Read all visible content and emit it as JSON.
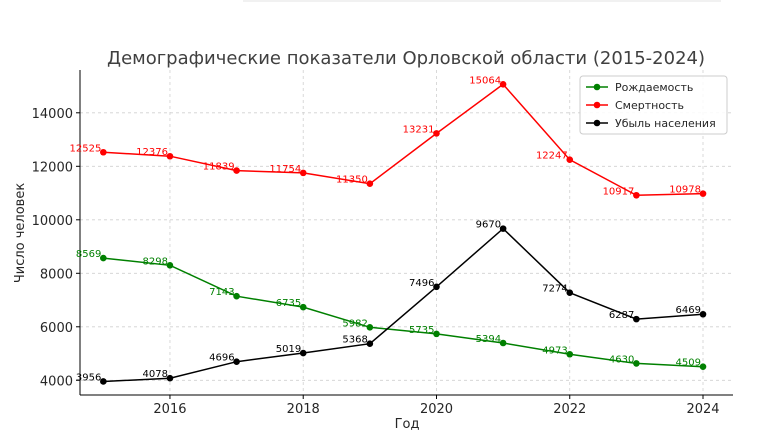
{
  "chart_data": {
    "type": "line",
    "title": "Демографические показатели Орловской области (2015-2024)",
    "xlabel": "Год",
    "ylabel": "Число человек",
    "x": [
      2015,
      2016,
      2017,
      2018,
      2019,
      2020,
      2021,
      2022,
      2023,
      2024
    ],
    "xlim": [
      2014.65,
      2024.45
    ],
    "ylim": [
      3450,
      15600
    ],
    "xticks": [
      2016,
      2018,
      2020,
      2022,
      2024
    ],
    "yticks": [
      4000,
      6000,
      8000,
      10000,
      12000,
      14000
    ],
    "grid": true,
    "legend_position": "top-right",
    "series": [
      {
        "name": "Рождаемость",
        "color": "#008000",
        "values": [
          8569,
          8298,
          7143,
          6735,
          5982,
          5735,
          5394,
          4973,
          4630,
          4509
        ]
      },
      {
        "name": "Смертность",
        "color": "#ff0000",
        "values": [
          12525,
          12376,
          11839,
          11754,
          11350,
          13231,
          15064,
          12247,
          10917,
          10978
        ]
      },
      {
        "name": "Убыль населения",
        "color": "#000000",
        "values": [
          3956,
          4078,
          4696,
          5019,
          5368,
          7496,
          9670,
          7274,
          6287,
          6469
        ]
      }
    ]
  }
}
